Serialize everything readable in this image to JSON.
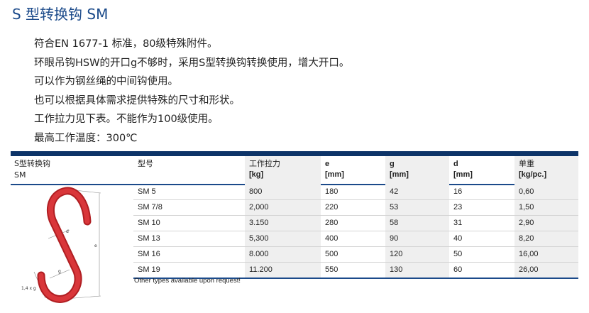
{
  "title": "S 型转换钩 SM",
  "bullets": [
    "符合EN 1677-1 标准，80级特殊附件。",
    "环眼吊钩HSW的开口g不够时，采用S型转换钩转换使用，增大开口。",
    "可以作为钢丝绳的中间钩使用。",
    "也可以根据具体需求提供特殊的尺寸和形状。",
    "工作拉力见下表。不能作为100级使用。",
    "最高工作温度：300℃"
  ],
  "product": {
    "name_cn": "S型转换钩",
    "name_code": "SM"
  },
  "diagram_labels": {
    "d": "d",
    "e": "e",
    "g": "g",
    "lip": "1,4 x g"
  },
  "table": {
    "headers": [
      {
        "label": "型号",
        "unit": ""
      },
      {
        "label": "工作拉力",
        "unit": "[kg]"
      },
      {
        "label": "e",
        "unit": "[mm]"
      },
      {
        "label": "g",
        "unit": "[mm]"
      },
      {
        "label": "d",
        "unit": "[mm]"
      },
      {
        "label": "单重",
        "unit": "[kg/pc.]"
      }
    ],
    "rows": [
      [
        "SM 5",
        "800",
        "180",
        "42",
        "16",
        "0,60"
      ],
      [
        "SM 7/8",
        "2,000",
        "220",
        "53",
        "23",
        "1,50"
      ],
      [
        "SM 10",
        "3.150",
        "280",
        "58",
        "31",
        "2,90"
      ],
      [
        "SM 13",
        "5,300",
        "400",
        "90",
        "40",
        "8,20"
      ],
      [
        "SM 16",
        "8.000",
        "500",
        "120",
        "50",
        "16,00"
      ],
      [
        "SM 19",
        "11.200",
        "550",
        "130",
        "60",
        "26,00"
      ]
    ]
  },
  "footnote": "Other types available upon request!",
  "colors": {
    "title": "#1b4a8a",
    "bar": "#0d3468",
    "hook": "#d42a2e"
  }
}
